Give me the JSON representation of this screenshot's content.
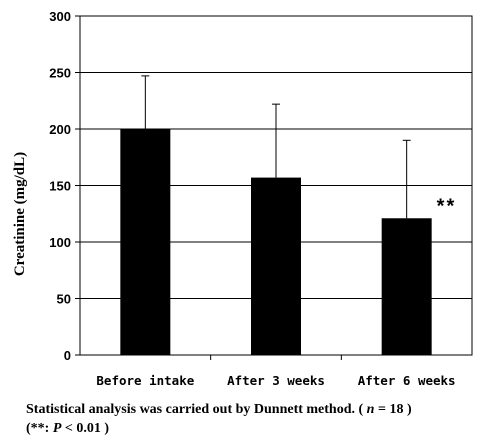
{
  "chart_data": {
    "type": "bar",
    "title": "",
    "xlabel": "",
    "ylabel": "Creatinine (mg/dL)",
    "ylim": [
      0,
      300
    ],
    "yticks": [
      0,
      50,
      100,
      150,
      200,
      250,
      300
    ],
    "grid": true,
    "categories": [
      "Before intake",
      "After 3 weeks",
      "After 6 weeks"
    ],
    "values": [
      200,
      157,
      121
    ],
    "error_upper": [
      247,
      222,
      190
    ],
    "bar_color": "#000000",
    "annotations": [
      {
        "category": "After 6 weeks",
        "text": "**"
      }
    ]
  },
  "footnote": {
    "line1_prefix": "Statistical analysis was carried out by Dunnett method. (",
    "n_symbol": "n",
    "line1_suffix": "= 18 )",
    "line2_prefix": "(**:",
    "p_symbol": "P",
    "line2_suffix": "< 0.01 )"
  }
}
